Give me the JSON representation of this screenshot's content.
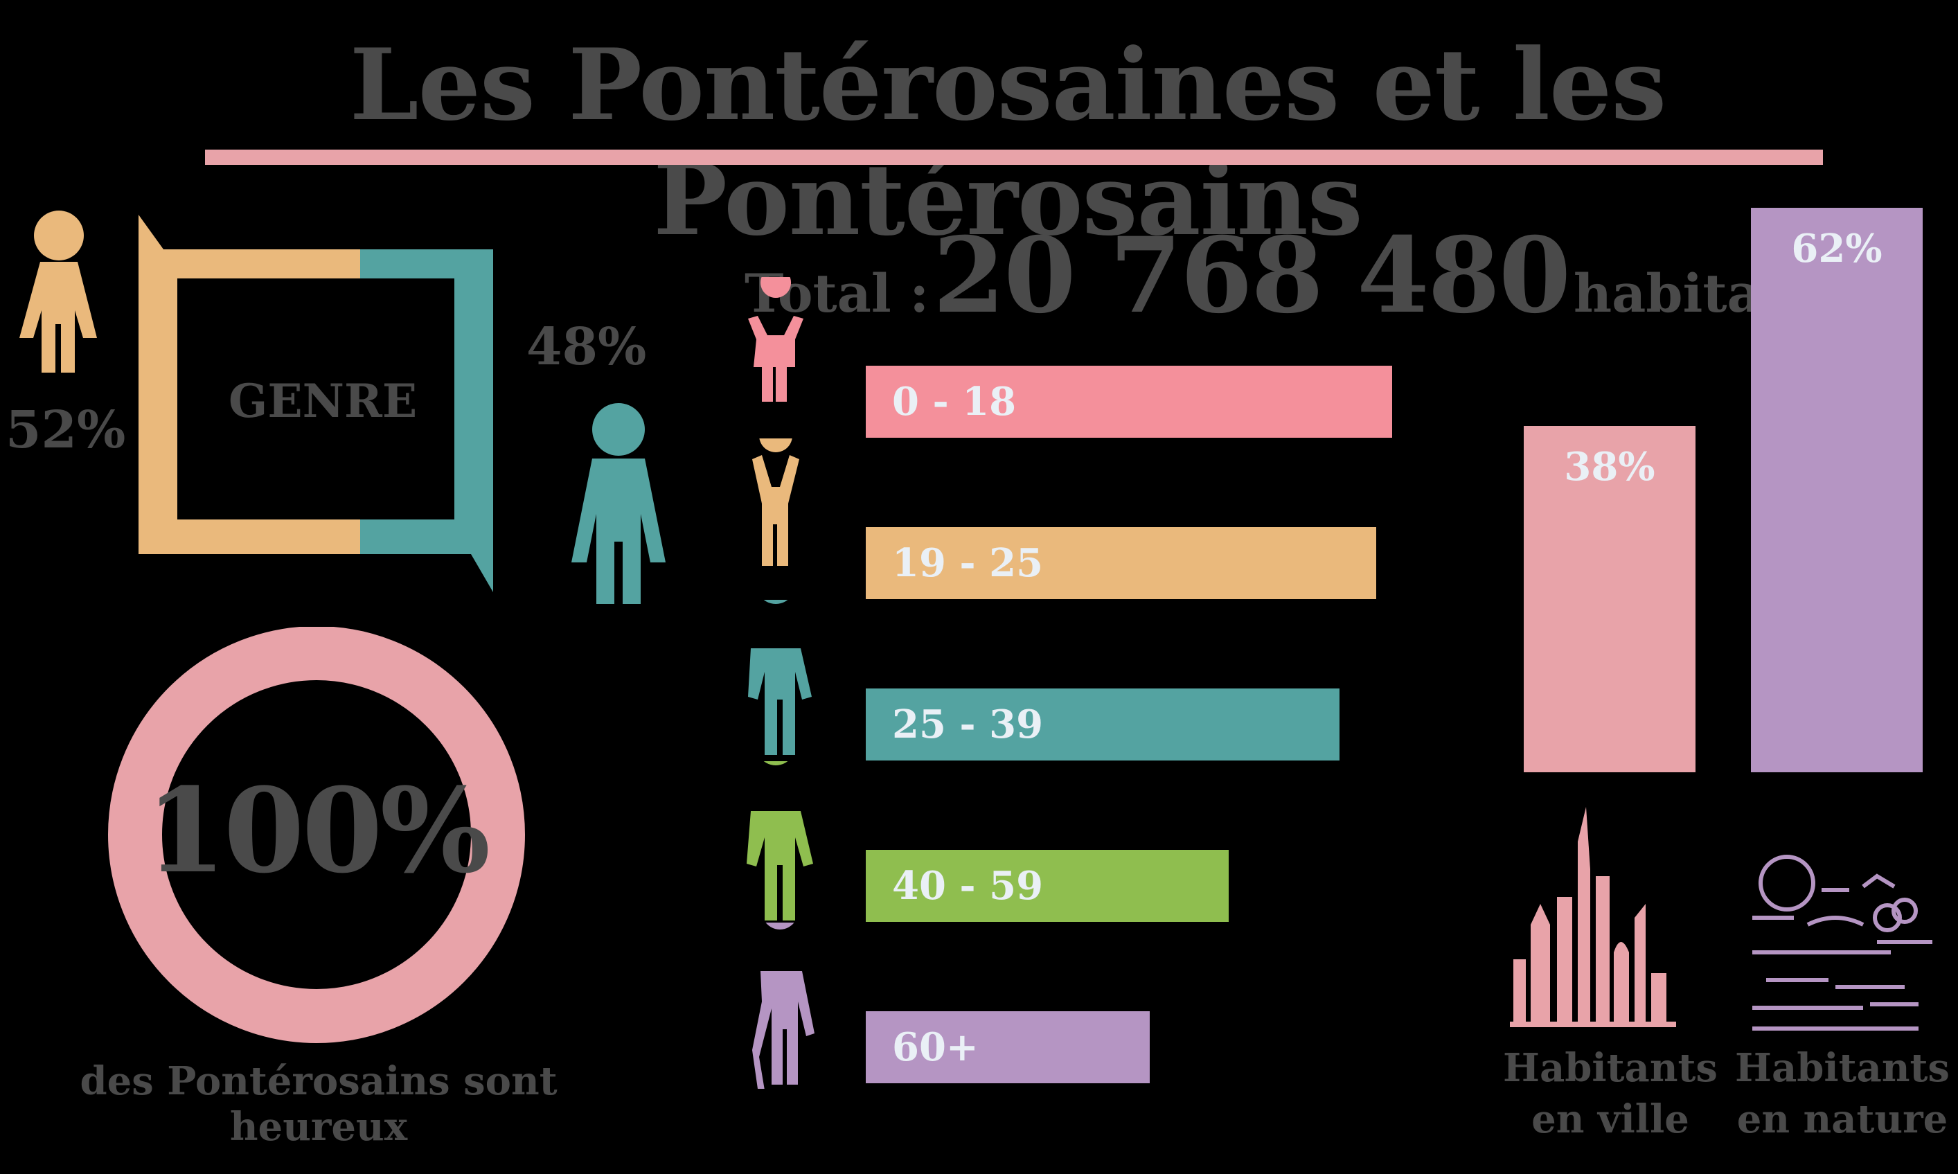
{
  "title": "Les Pontérosaines et les Pontérosains",
  "gender": {
    "label": "GENRE",
    "female_pct": "52%",
    "male_pct": "48%",
    "female_color": "#eab97c",
    "male_color": "#54a3a1"
  },
  "happiness": {
    "value": "100%",
    "caption": "des Pontérosains sont heureux",
    "color": "#e8a3a9"
  },
  "total": {
    "label": "Total :",
    "value": "20 768 480",
    "unit": "habitants"
  },
  "chart_data": [
    {
      "type": "bar",
      "orientation": "horizontal",
      "categories": [
        "0 - 18",
        "19 - 25",
        "25 - 39",
        "40 - 59",
        "60+"
      ],
      "values": [
        100,
        97,
        90,
        69,
        54
      ],
      "colors": [
        "#f4909b",
        "#eab97c",
        "#54a3a1",
        "#8fbe4f",
        "#b595c3"
      ],
      "icons": [
        "toddler-icon",
        "child-arms-up-icon",
        "adult-icon",
        "older-adult-icon",
        "senior-cane-icon"
      ],
      "xlabel": "",
      "ylabel": "",
      "grid": false
    },
    {
      "type": "bar",
      "orientation": "vertical",
      "categories": [
        "Habitants en ville",
        "Habitants en nature"
      ],
      "category_lines": [
        [
          "Habitants",
          "en ville"
        ],
        [
          "Habitants",
          "en nature"
        ]
      ],
      "values": [
        38,
        62
      ],
      "labels": [
        "38%",
        "62%"
      ],
      "colors": [
        "#e8a3a9",
        "#b595c3"
      ],
      "icons": [
        "city-skyline-icon",
        "nature-landscape-icon"
      ],
      "ylim": [
        0,
        62
      ],
      "grid": false
    }
  ]
}
